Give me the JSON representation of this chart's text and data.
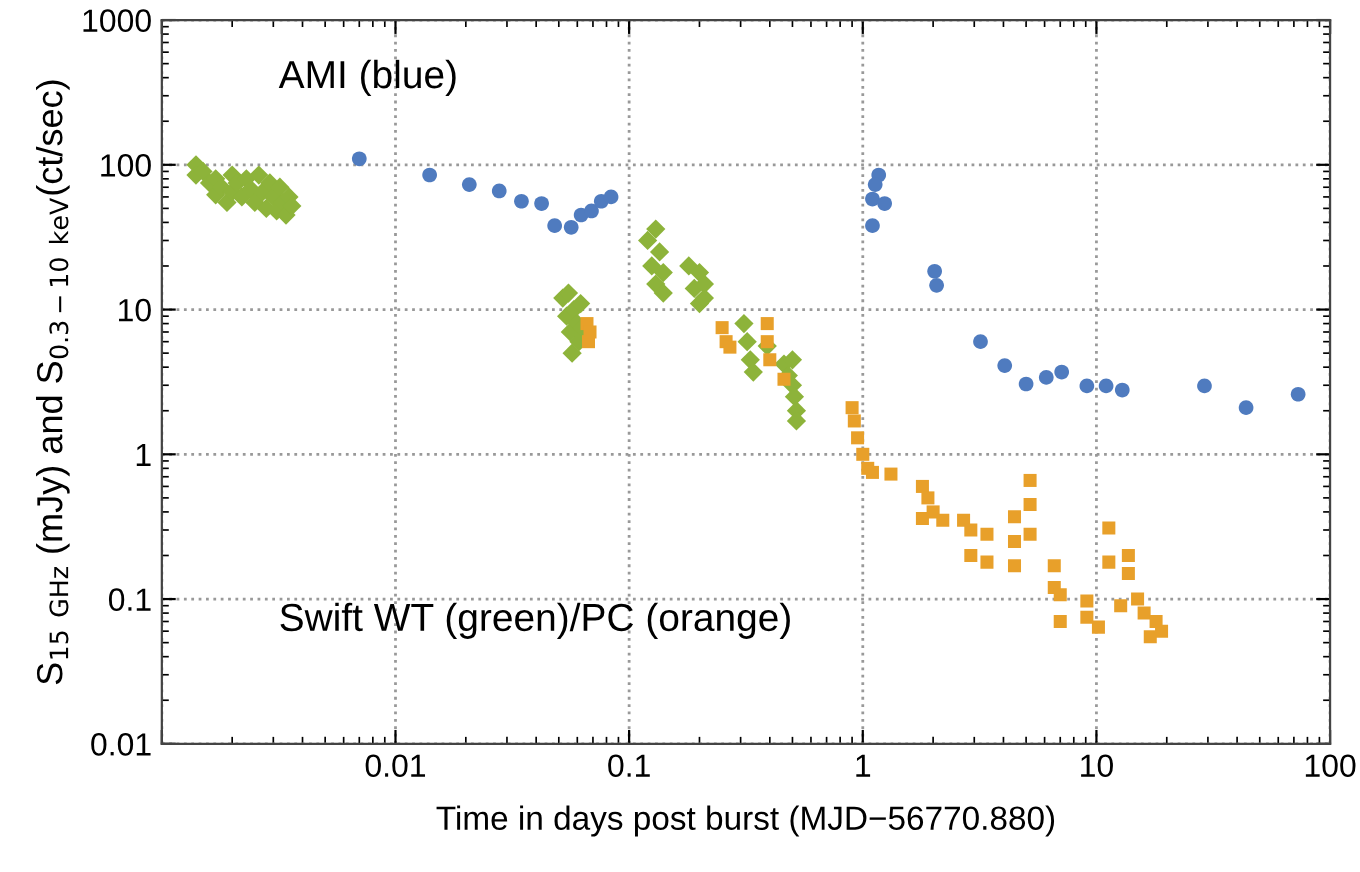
{
  "chart_data": {
    "type": "scatter",
    "xlabel": "Time in days post burst (MJD−56770.880)",
    "ylabel": "S$_{15 GHz}$ (mJy) and S$_{0.3−10 keV}$(ct/sec)",
    "log": "xy",
    "grid": true,
    "line_style": "dotted",
    "xlim": [
      0.001,
      100
    ],
    "xticks": [
      {
        "value": 0.001,
        "label": null
      },
      0.01,
      0.1,
      1,
      10,
      100
    ],
    "ylim": [
      0.01,
      1000
    ],
    "yticks": [
      0.01,
      0.1,
      1,
      10,
      100,
      1000
    ],
    "annotations": [
      "AMI (blue)",
      "Swift WT (green)/PC (orange)"
    ],
    "series": [
      {
        "color": "#4f7bbf",
        "marker": "circle",
        "x": [
          0.007,
          0.014,
          0.0207,
          0.0278,
          0.0346,
          0.0422,
          0.048,
          0.0565,
          0.0623,
          0.069,
          0.076,
          0.0837,
          1.17,
          1.13,
          1.1,
          1.24,
          1.1,
          2.03,
          2.07,
          3.19,
          4.05,
          5.0,
          6.1,
          7.1,
          9.1,
          11.0,
          12.9,
          29,
          43.7,
          73
        ],
        "values": [
          110,
          85,
          73,
          66,
          56,
          54,
          38,
          37,
          45,
          48,
          56,
          60,
          85,
          73,
          58,
          54,
          38,
          18.4,
          14.7,
          6.0,
          4.1,
          3.06,
          3.4,
          3.7,
          2.97,
          2.97,
          2.78,
          2.97,
          2.1,
          2.6
        ]
      },
      {
        "color": "#8db33a",
        "marker": "diamond",
        "x": [
          0.0014,
          0.0014,
          0.0015,
          0.0016,
          0.0017,
          0.0017,
          0.0018,
          0.0019,
          0.002,
          0.002,
          0.0021,
          0.0022,
          0.0023,
          0.0024,
          0.0025,
          0.0026,
          0.0027,
          0.0028,
          0.0029,
          0.003,
          0.0031,
          0.0032,
          0.0033,
          0.0034,
          0.0035,
          0.0036,
          0.052,
          0.054,
          0.055,
          0.056,
          0.057,
          0.058,
          0.06,
          0.061,
          0.062,
          0.063,
          0.12,
          0.125,
          0.13,
          0.13,
          0.135,
          0.14,
          0.14,
          0.18,
          0.19,
          0.2,
          0.2,
          0.21,
          0.21,
          0.31,
          0.32,
          0.33,
          0.34,
          0.39,
          0.46,
          0.48,
          0.5,
          0.5,
          0.51,
          0.52,
          0.52
        ],
        "values": [
          100,
          85,
          90,
          75,
          80,
          62,
          70,
          55,
          85,
          65,
          75,
          60,
          80,
          68,
          55,
          85,
          65,
          50,
          75,
          60,
          48,
          70,
          55,
          45,
          60,
          52,
          12,
          9,
          13,
          7,
          5,
          10,
          8,
          6,
          11,
          7.5,
          30,
          20,
          36,
          15,
          25,
          18,
          13,
          20,
          14,
          18,
          11,
          15,
          12,
          8,
          6,
          4.5,
          3.7,
          5.6,
          4.2,
          3.5,
          4.5,
          3,
          2.5,
          2,
          1.7
        ]
      },
      {
        "color": "#e8a02a",
        "marker": "square",
        "x": [
          0.066,
          0.067,
          0.068,
          0.25,
          0.26,
          0.27,
          0.39,
          0.39,
          0.4,
          0.46,
          0.9,
          0.92,
          0.95,
          1.0,
          1.05,
          1.1,
          1.32,
          1.8,
          1.9,
          2.0,
          1.8,
          2.2,
          2.7,
          2.9,
          2.9,
          3.4,
          3.4,
          4.46,
          4.46,
          4.46,
          5.2,
          5.2,
          5.2,
          6.6,
          6.6,
          7.0,
          7.0,
          9.1,
          9.1,
          10.2,
          11.3,
          11.3,
          13.7,
          13.7,
          12.7,
          15,
          16,
          17,
          18,
          19
        ],
        "values": [
          8,
          6,
          7,
          7.5,
          6,
          5.5,
          8,
          6,
          4.5,
          3.3,
          2.1,
          1.7,
          1.3,
          1.0,
          0.8,
          0.75,
          0.73,
          0.6,
          0.5,
          0.4,
          0.36,
          0.35,
          0.35,
          0.3,
          0.2,
          0.28,
          0.18,
          0.37,
          0.25,
          0.17,
          0.66,
          0.45,
          0.28,
          0.17,
          0.12,
          0.107,
          0.07,
          0.097,
          0.075,
          0.064,
          0.31,
          0.18,
          0.2,
          0.15,
          0.09,
          0.1,
          0.08,
          0.055,
          0.07,
          0.06
        ]
      }
    ]
  }
}
